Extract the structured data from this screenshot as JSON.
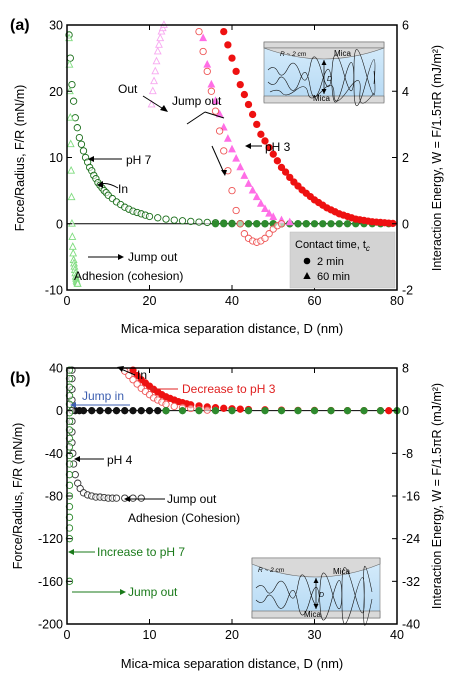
{
  "chart_data": [
    {
      "type": "scatter",
      "panel_label": "(a)",
      "xlabel": "Mica-mica separation distance, D (nm)",
      "ylabel": "Force/Radius, F/R (mN/m)",
      "y2label": "Interaction Energy, W = F/1.5πR (mJ/m²)",
      "xlim": [
        0,
        80
      ],
      "ylim": [
        -10,
        30
      ],
      "y2lim": [
        -2,
        6
      ],
      "xticks": [
        "0",
        "20",
        "40",
        "60",
        "80"
      ],
      "yticks": [
        "-10",
        "0",
        "10",
        "20",
        "30"
      ],
      "y2ticks": [
        "-2",
        "0",
        "2",
        "4",
        "6"
      ],
      "legend": {
        "title": "Contact time, t",
        "title_sub": "c",
        "items": [
          "2 min",
          "60 min"
        ],
        "placement": "bottom-right"
      },
      "inset_labels": {
        "top": "Mica",
        "bottom": "Mica",
        "radius": "R ~ 2 cm",
        "gap": "D"
      },
      "annotations": [
        "Out",
        "Jump out",
        "pH 3",
        "pH 7",
        "In",
        "Jump out",
        "Adhesion (cohesion)"
      ],
      "series": [
        {
          "color": "#1a6e1a",
          "marker": "circle-open",
          "x": [
            0.5,
            0.8,
            1.2,
            1.6,
            2.0,
            2.5,
            3.0,
            3.5,
            4.0,
            4.5,
            5.0,
            5.5,
            6.0,
            6.5,
            7.0,
            7.5,
            8.0,
            8.5,
            9.0,
            9.5,
            10,
            11,
            12,
            13,
            14,
            15,
            16,
            17,
            18,
            19,
            20,
            22,
            24,
            26,
            28,
            30,
            32,
            34,
            36,
            38,
            40,
            42,
            44,
            46,
            48,
            50,
            52,
            54,
            56,
            58
          ],
          "y": [
            28.5,
            25,
            21,
            18.5,
            16,
            14.5,
            13,
            12,
            11,
            10,
            9.3,
            8.5,
            8,
            7.3,
            6.8,
            6.2,
            5.8,
            5.4,
            5,
            4.7,
            4.3,
            3.8,
            3.3,
            2.9,
            2.5,
            2.2,
            1.9,
            1.7,
            1.5,
            1.3,
            1.1,
            0.9,
            0.7,
            0.55,
            0.45,
            0.35,
            0.25,
            0.2,
            0.15,
            0.1,
            0.05,
            0.02,
            0,
            0,
            0,
            0,
            0,
            0,
            0,
            0
          ]
        },
        {
          "color": "#2e8b2e",
          "marker": "circle-filled",
          "x": [
            36,
            38,
            40,
            42,
            44,
            46,
            48,
            50,
            52,
            54,
            56,
            58,
            60,
            62,
            64,
            66,
            68,
            70,
            72,
            74,
            76,
            78
          ],
          "y": [
            0,
            0,
            0,
            0,
            0,
            0,
            0,
            0,
            0,
            0,
            0,
            0,
            0,
            0,
            0,
            0,
            0,
            0,
            0,
            0,
            0,
            0
          ]
        },
        {
          "color": "#7fdc7f",
          "marker": "triangle-open",
          "x": [
            0.5,
            0.6,
            0.7,
            0.8,
            0.9,
            1.0,
            1.1,
            1.2,
            1.3,
            1.4,
            1.5,
            1.6,
            1.7,
            1.8,
            1.9,
            2.0,
            2.1,
            2.2,
            2.3,
            2.4,
            2.5,
            2.6
          ],
          "y": [
            28,
            24,
            20,
            16,
            12,
            8,
            4,
            0,
            -2,
            -3.5,
            -4.5,
            -5.5,
            -6,
            -6.5,
            -7,
            -7.5,
            -8,
            -8.3,
            -8.6,
            -8.8,
            -9,
            -9.1
          ]
        },
        {
          "color": "#ff6ee6",
          "marker": "triangle-filled",
          "x": [
            33,
            34,
            35,
            36,
            37,
            38,
            39,
            40,
            41,
            42,
            43,
            44,
            45,
            46,
            47,
            48,
            49,
            50,
            52,
            54
          ],
          "y": [
            28,
            24,
            21,
            18.5,
            16.5,
            14.5,
            12.8,
            11.2,
            9.8,
            8.5,
            7.2,
            6,
            5,
            4,
            3,
            2.2,
            1.5,
            1,
            0.5,
            0.2
          ]
        },
        {
          "color": "#f7a8f0",
          "marker": "triangle-open",
          "x": [
            20.5,
            20.8,
            21.1,
            21.4,
            21.7,
            22.0,
            22.3,
            22.6,
            22.9,
            23.2,
            23.5
          ],
          "y": [
            18,
            20,
            21.5,
            23,
            24.5,
            26,
            27,
            28,
            29,
            29.5,
            30
          ]
        },
        {
          "color": "#ee1111",
          "marker": "circle-filled",
          "x": [
            38,
            39,
            40,
            41,
            42,
            43,
            44,
            45,
            46,
            47,
            48,
            49,
            50,
            51,
            52,
            53,
            54,
            55,
            56,
            57,
            58,
            59,
            60,
            61,
            62,
            63,
            64,
            65,
            66,
            67,
            68,
            69,
            70,
            71,
            72,
            73,
            74,
            75,
            76,
            77,
            78,
            79
          ],
          "y": [
            29,
            27,
            25,
            23,
            21,
            19.5,
            18,
            16.5,
            15,
            13.5,
            12.5,
            11.5,
            10.5,
            9.5,
            8.5,
            7.8,
            7,
            6.3,
            5.7,
            5.1,
            4.6,
            4.1,
            3.6,
            3.2,
            2.8,
            2.4,
            2.1,
            1.8,
            1.5,
            1.3,
            1.1,
            0.9,
            0.7,
            0.6,
            0.5,
            0.4,
            0.3,
            0.25,
            0.2,
            0.15,
            0.1,
            0.05
          ]
        },
        {
          "color": "#ee5555",
          "marker": "circle-open",
          "x": [
            32,
            33,
            34,
            35,
            36,
            37,
            38,
            39,
            40,
            41,
            42,
            43,
            44,
            45,
            46,
            47,
            48,
            49,
            50,
            51,
            52
          ],
          "y": [
            29,
            26,
            23,
            20,
            17,
            14,
            11,
            8,
            5,
            2,
            0,
            -1.5,
            -2.2,
            -2.6,
            -2.8,
            -2.6,
            -2.2,
            -1.5,
            -0.8,
            -0.3,
            0
          ]
        }
      ]
    },
    {
      "type": "scatter",
      "panel_label": "(b)",
      "xlabel": "Mica-mica separation distance, D (nm)",
      "ylabel": "Force/Radius, F/R (mN/m)",
      "y2label": "Interaction Energy, W = F/1.5πR (mJ/m²)",
      "xlim": [
        0,
        40
      ],
      "ylim": [
        -200,
        40
      ],
      "y2lim": [
        -40,
        8
      ],
      "xticks": [
        "0",
        "10",
        "20",
        "30",
        "40"
      ],
      "yticks": [
        "-200",
        "-160",
        "-120",
        "-80",
        "-40",
        "0",
        "40"
      ],
      "y2ticks": [
        "-40",
        "-32",
        "-24",
        "-16",
        "-8",
        "0",
        "8"
      ],
      "inset_labels": {
        "top": "Mica",
        "bottom": "Mica",
        "radius": "R ~ 2 cm",
        "gap": "D"
      },
      "annotations": [
        "In",
        "Decrease to pH 3",
        "Jump in",
        "pH 4",
        "Jump out",
        "Adhesion (Cohesion)",
        "Increase to pH 7",
        "Jump out"
      ],
      "series": [
        {
          "color": "#ee1111",
          "marker": "circle-filled",
          "x": [
            8,
            8.5,
            9,
            9.5,
            10,
            10.5,
            11,
            11.5,
            12,
            12.5,
            13,
            13.5,
            14,
            14.5,
            15,
            16,
            17,
            18,
            19,
            20,
            21,
            22,
            24,
            26,
            28,
            30,
            32,
            34,
            36,
            38,
            39
          ],
          "y": [
            38,
            33,
            29,
            26,
            23,
            20,
            17.5,
            15,
            13,
            11.5,
            10,
            8.5,
            7.5,
            6.5,
            5.5,
            4.5,
            3.5,
            2.8,
            2.2,
            1.8,
            1.4,
            1.1,
            0.8,
            0.5,
            0.3,
            0.2,
            0.1,
            0.05,
            0,
            0,
            0
          ]
        },
        {
          "color": "#ee5555",
          "marker": "circle-open",
          "x": [
            7,
            7.5,
            8,
            8.5,
            9,
            9.5,
            10,
            10.5,
            11,
            11.5,
            12,
            13,
            14,
            15,
            16,
            17,
            18
          ],
          "y": [
            37,
            33,
            29,
            25,
            21,
            18,
            15,
            12,
            10,
            8,
            6,
            4,
            3,
            2,
            1,
            0.5,
            0.2
          ]
        },
        {
          "color": "#111111",
          "marker": "circle-filled",
          "x": [
            1,
            1.5,
            2,
            3,
            4,
            5,
            6,
            7,
            8,
            9,
            10,
            11,
            12
          ],
          "y": [
            0,
            0,
            0,
            0,
            0,
            0,
            0,
            0,
            0,
            0,
            0,
            0,
            0
          ]
        },
        {
          "color": "#333333",
          "marker": "circle-open",
          "x": [
            0.6,
            0.6,
            0.6,
            0.6,
            0.6,
            0.6,
            0.6,
            0.6,
            0.7,
            0.8,
            1.0,
            1.3,
            1.6,
            2.0,
            2.5,
            3.0,
            3.5,
            4.0,
            4.5,
            5.0,
            5.5,
            6.0,
            7.0,
            8.0,
            9.0
          ],
          "y": [
            38,
            30,
            20,
            10,
            0,
            -10,
            -20,
            -30,
            -40,
            -50,
            -60,
            -68,
            -73,
            -77,
            -79,
            -80,
            -81,
            -81,
            -81.5,
            -82,
            -82,
            -82,
            -82,
            -82,
            -82
          ]
        },
        {
          "color": "#2e8b2e",
          "marker": "circle-filled",
          "x": [
            12,
            14,
            16,
            18,
            20,
            22,
            24,
            26,
            28,
            30,
            32,
            34,
            36,
            38,
            40
          ],
          "y": [
            0,
            0,
            0,
            0,
            0,
            0,
            0,
            0,
            0,
            0,
            0,
            0,
            0,
            0,
            0
          ]
        },
        {
          "color": "#2e8b2e",
          "marker": "circle-open",
          "x": [
            0.3,
            0.3,
            0.3,
            0.3,
            0.3,
            0.3,
            0.3,
            0.3,
            0.3,
            0.3,
            0.3,
            0.3,
            0.3,
            0.3,
            0.3,
            0.3,
            0.3,
            0.3,
            0.3,
            0.3
          ],
          "y": [
            38,
            30,
            22,
            14,
            6,
            -2,
            -10,
            -18,
            -26,
            -34,
            -42,
            -50,
            -60,
            -70,
            -80,
            -90,
            -100,
            -110,
            -120,
            -160
          ]
        }
      ]
    }
  ]
}
